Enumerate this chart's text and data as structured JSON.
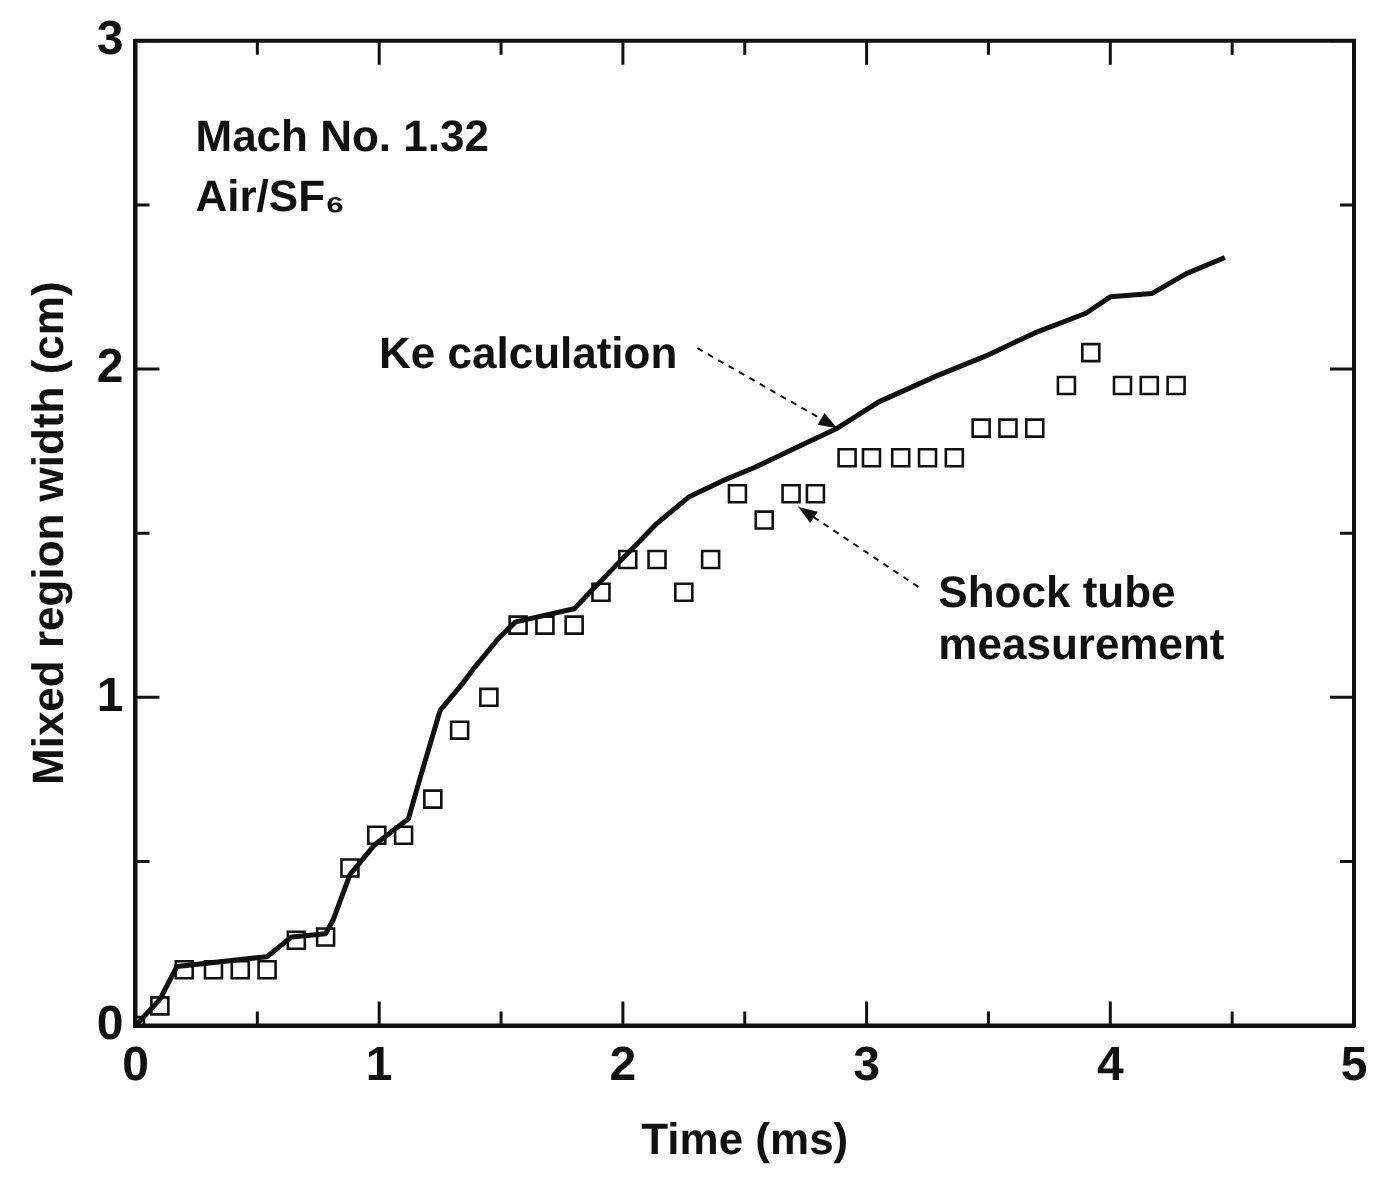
{
  "chart_data": {
    "type": "scatter",
    "xlabel": "Time (ms)",
    "ylabel": "Mixed region width (cm)",
    "xlim": [
      0,
      5
    ],
    "ylim": [
      0,
      3
    ],
    "xticks": [
      0,
      {
        "value": 0.5,
        "label": null
      },
      1,
      {
        "value": 1.5,
        "label": null
      },
      2,
      {
        "value": 2.5,
        "label": null
      },
      3,
      {
        "value": 3.5,
        "label": null
      },
      4,
      {
        "value": 4.5,
        "label": null
      },
      5
    ],
    "yticks": [
      0,
      {
        "value": 0.5,
        "label": null
      },
      1,
      {
        "value": 1.5,
        "label": null
      },
      2,
      {
        "value": 2.5,
        "label": null
      },
      3
    ],
    "grid": false,
    "legend": false,
    "annotations": [
      "Mach No. 1.32",
      "Air/SF₆",
      {
        "text": "Ke calculation",
        "x": 2.88,
        "y": 1.82
      },
      {
        "text": "Shock tube measurement",
        "x": 2.72,
        "y": 1.58
      }
    ],
    "series": [
      {
        "type": "line",
        "color": "#111111",
        "marker": "none",
        "line_style": "solid",
        "x": [
          0,
          0.1,
          0.17,
          0.54,
          0.64,
          0.78,
          0.81,
          0.88,
          0.98,
          1.12,
          1.17,
          1.25,
          1.34,
          1.39,
          1.49,
          1.56,
          1.8,
          1.93,
          2.14,
          2.27,
          2.41,
          2.54,
          2.71,
          2.88,
          3.05,
          3.29,
          3.49,
          3.69,
          3.9,
          4.0,
          4.17,
          4.31,
          4.47
        ],
        "values": [
          0,
          0.08,
          0.18,
          0.21,
          0.27,
          0.28,
          0.32,
          0.46,
          0.55,
          0.63,
          0.76,
          0.96,
          1.04,
          1.09,
          1.18,
          1.23,
          1.27,
          1.37,
          1.53,
          1.61,
          1.66,
          1.7,
          1.76,
          1.82,
          1.9,
          1.98,
          2.04,
          2.11,
          2.17,
          2.22,
          2.23,
          2.29,
          2.34
        ]
      },
      {
        "color": "#111111",
        "marker": "square",
        "x": [
          0,
          0.1,
          0.2,
          0.32,
          0.43,
          0.54,
          0.66,
          0.78,
          0.88,
          0.99,
          1.1,
          1.22,
          1.33,
          1.45,
          1.57,
          1.68,
          1.8,
          1.91,
          2.02,
          2.14,
          2.25,
          2.36,
          2.47,
          2.58,
          2.69,
          2.79,
          2.92,
          3.02,
          3.14,
          3.25,
          3.36,
          3.47,
          3.58,
          3.69,
          3.82,
          3.92,
          4.05,
          4.16,
          4.27
        ],
        "values": [
          0,
          0.06,
          0.17,
          0.17,
          0.17,
          0.17,
          0.26,
          0.27,
          0.48,
          0.58,
          0.58,
          0.69,
          0.9,
          1.0,
          1.22,
          1.22,
          1.22,
          1.32,
          1.42,
          1.42,
          1.32,
          1.42,
          1.62,
          1.54,
          1.62,
          1.62,
          1.73,
          1.73,
          1.73,
          1.73,
          1.73,
          1.82,
          1.82,
          1.82,
          1.95,
          2.05,
          1.95,
          1.95,
          1.95
        ]
      }
    ]
  }
}
